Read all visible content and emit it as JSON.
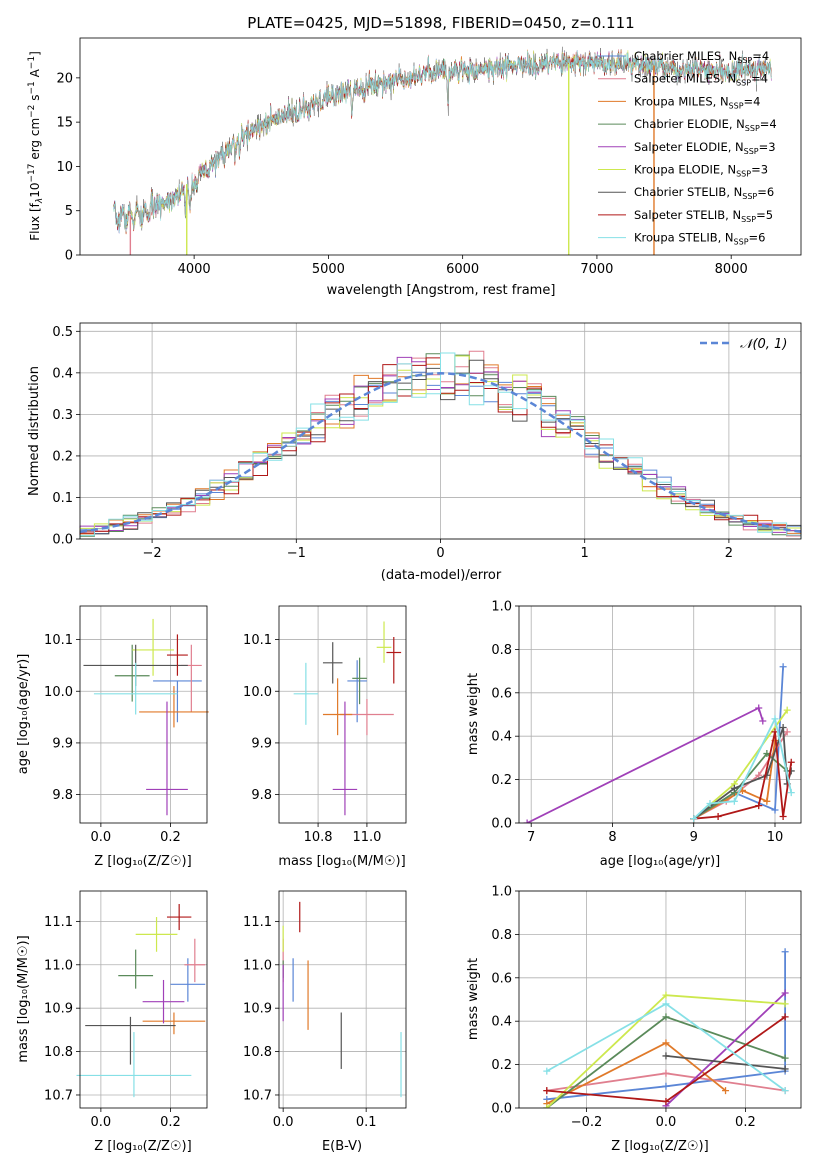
{
  "figure_title": "PLATE=0425, MJD=51898, FIBERID=0450, z=0.111",
  "models": [
    {
      "name": "Chabrier MILES",
      "nssp": "4",
      "color": "#5b86d6"
    },
    {
      "name": "Salpeter MILES",
      "nssp": "4",
      "color": "#e07f8f"
    },
    {
      "name": "Kroupa MILES",
      "nssp": "4",
      "color": "#e07a2a"
    },
    {
      "name": "Chabrier ELODIE",
      "nssp": "4",
      "color": "#5a8a5a"
    },
    {
      "name": "Salpeter ELODIE",
      "nssp": "3",
      "color": "#a040b8"
    },
    {
      "name": "Kroupa ELODIE",
      "nssp": "3",
      "color": "#cde84e"
    },
    {
      "name": "Chabrier STELIB",
      "nssp": "6",
      "color": "#555555"
    },
    {
      "name": "Salpeter STELIB",
      "nssp": "5",
      "color": "#b01818"
    },
    {
      "name": "Kroupa STELIB",
      "nssp": "6",
      "color": "#86e0e6"
    }
  ],
  "chart_data": [
    {
      "id": "spectrum",
      "type": "line",
      "xlabel": "wavelength [Angstrom, rest frame]",
      "ylabel_parts": {
        "a": "Flux [f",
        "b": "λ",
        "c": "10",
        "d": "−17",
        "e": " erg cm",
        "f": "−2",
        "g": " s",
        "h": "−1",
        "i": " A",
        "j": "−1",
        "k": "]"
      },
      "xlim": [
        3150,
        8520
      ],
      "ylim": [
        0,
        24.5
      ],
      "xticks": [
        4000,
        5000,
        6000,
        7000,
        8000
      ],
      "yticks": [
        0,
        5,
        10,
        15,
        20
      ],
      "continuum_knots": [
        [
          3400,
          4.2
        ],
        [
          3600,
          4.5
        ],
        [
          3800,
          6.2
        ],
        [
          3950,
          7.4
        ],
        [
          4100,
          9.8
        ],
        [
          4300,
          12.5
        ],
        [
          4500,
          14.8
        ],
        [
          4800,
          16.3
        ],
        [
          5000,
          17.8
        ],
        [
          5200,
          18.9
        ],
        [
          5500,
          19.8
        ],
        [
          5800,
          20.8
        ],
        [
          6100,
          20.9
        ],
        [
          6400,
          21.4
        ],
        [
          6700,
          21.6
        ],
        [
          7000,
          21.7
        ],
        [
          7300,
          21.5
        ],
        [
          7700,
          21.0
        ],
        [
          8000,
          20.8
        ],
        [
          8300,
          21.2
        ]
      ],
      "absorption_features": [
        [
          3934,
          2.5
        ],
        [
          3969,
          2.3
        ],
        [
          4102,
          1.2
        ],
        [
          4305,
          1.6
        ],
        [
          4340,
          1.0
        ],
        [
          4861,
          1.2
        ],
        [
          5175,
          2.6
        ],
        [
          5270,
          1.2
        ],
        [
          5890,
          3.5
        ],
        [
          6563,
          1.2
        ],
        [
          7600,
          0.8
        ]
      ],
      "glitches": [
        [
          3525,
          4.5
        ],
        [
          3945,
          8.0
        ],
        [
          6790,
          21.6
        ],
        [
          7425,
          21.4
        ]
      ],
      "legend_loc": "upper right"
    },
    {
      "id": "residuals",
      "type": "step-histogram",
      "xlabel": "(data-model)/error",
      "ylabel": "Normed distribution",
      "xlim": [
        -2.5,
        2.5
      ],
      "ylim": [
        0,
        0.52
      ],
      "xticks": [
        -2,
        -1,
        0,
        1,
        2
      ],
      "xticklabels": [
        "−2",
        "−1",
        "0",
        "1",
        "2"
      ],
      "yticks": [
        0.0,
        0.1,
        0.2,
        0.3,
        0.4,
        0.5
      ],
      "yticklabels": [
        "0.0",
        "0.1",
        "0.2",
        "0.3",
        "0.4",
        "0.5"
      ],
      "bin_width": 0.1,
      "normal_curve_label": "𝒩(0, 1)",
      "normal_curve_color": "#5b86d6",
      "legend_loc": "upper right",
      "grid": true
    },
    {
      "id": "age_vs_Z",
      "type": "errorbar",
      "xlabel": "Z [log₁₀(Z/Z☉)]",
      "ylabel": "age  [log₁₀(age/yr)]",
      "xlim": [
        -0.06,
        0.305
      ],
      "ylim": [
        9.745,
        10.165
      ],
      "xticks": [
        0.0,
        0.2
      ],
      "xticklabels": [
        "0.0",
        "0.2"
      ],
      "yticks": [
        9.8,
        9.9,
        10.0,
        10.1
      ],
      "yticklabels": [
        "9.8",
        "9.9",
        "10.0",
        "10.1"
      ],
      "points": [
        {
          "x": 0.22,
          "xerr": 0.07,
          "y": 10.02,
          "yerr": [
            0.08,
            0.0
          ]
        },
        {
          "x": 0.26,
          "xerr": 0.03,
          "y": 10.05,
          "yerr": [
            0.09,
            0.04
          ]
        },
        {
          "x": 0.21,
          "xerr": 0.1,
          "y": 9.96,
          "yerr": [
            0.03,
            0.05
          ]
        },
        {
          "x": 0.09,
          "xerr": 0.05,
          "y": 10.03,
          "yerr": [
            0.05,
            0.06
          ]
        },
        {
          "x": 0.19,
          "xerr": 0.06,
          "y": 9.81,
          "yerr": [
            0.05,
            0.17
          ]
        },
        {
          "x": 0.15,
          "xerr": 0.06,
          "y": 10.08,
          "yerr": [
            0.05,
            0.06
          ]
        },
        {
          "x": 0.1,
          "xerr": 0.15,
          "y": 10.05,
          "yerr": [
            0.04,
            0.04
          ]
        },
        {
          "x": 0.22,
          "xerr": 0.03,
          "y": 10.07,
          "yerr": [
            0.04,
            0.04
          ]
        },
        {
          "x": 0.1,
          "xerr": 0.12,
          "y": 9.995,
          "yerr": [
            0.04,
            0.06
          ]
        }
      ]
    },
    {
      "id": "age_vs_mass",
      "type": "errorbar",
      "xlabel": "mass [log₁₀(M/M☉)]",
      "xlim": [
        10.64,
        11.16
      ],
      "ylim": [
        9.745,
        10.165
      ],
      "xticks": [
        10.8,
        11.0
      ],
      "xticklabels": [
        "10.8",
        "11.0"
      ],
      "yticks": [
        9.8,
        9.9,
        10.0,
        10.1
      ],
      "yticklabels": [
        "9.8",
        "9.9",
        "10.0",
        "10.1"
      ],
      "points": [
        {
          "x": 10.96,
          "xerr": 0.04,
          "y": 10.02,
          "yerr": [
            0.08,
            0.04
          ]
        },
        {
          "x": 11.0,
          "xerr": 0.11,
          "y": 9.955,
          "yerr": [
            0.04,
            0.03
          ]
        },
        {
          "x": 10.88,
          "xerr": 0.06,
          "y": 9.955,
          "yerr": [
            0.04,
            0.07
          ]
        },
        {
          "x": 10.97,
          "xerr": 0.03,
          "y": 10.025,
          "yerr": [
            0.05,
            0.04
          ]
        },
        {
          "x": 10.91,
          "xerr": 0.05,
          "y": 9.81,
          "yerr": [
            0.05,
            0.17
          ]
        },
        {
          "x": 11.07,
          "xerr": 0.03,
          "y": 10.085,
          "yerr": [
            0.03,
            0.05
          ]
        },
        {
          "x": 10.86,
          "xerr": 0.04,
          "y": 10.055,
          "yerr": [
            0.04,
            0.04
          ]
        },
        {
          "x": 11.11,
          "xerr": 0.03,
          "y": 10.075,
          "yerr": [
            0.06,
            0.03
          ]
        },
        {
          "x": 10.75,
          "xerr": 0.05,
          "y": 9.995,
          "yerr": [
            0.06,
            0.06
          ]
        }
      ]
    },
    {
      "id": "massweight_vs_age",
      "type": "line",
      "xlabel": "age  [log₁₀(age/yr)]",
      "ylabel": "mass weight",
      "xlim": [
        6.85,
        10.32
      ],
      "ylim": [
        0,
        1
      ],
      "xticks": [
        7,
        8,
        9,
        10
      ],
      "yticks": [
        0.0,
        0.2,
        0.4,
        0.6,
        0.8,
        1.0
      ],
      "yticklabels": [
        "0.0",
        "0.2",
        "0.4",
        "0.6",
        "0.8",
        "1.0"
      ],
      "series": [
        {
          "x": [
            9.0,
            9.5,
            10.0,
            10.1
          ],
          "y": [
            0.02,
            0.14,
            0.06,
            0.72
          ]
        },
        {
          "x": [
            9.0,
            9.4,
            9.8,
            10.15
          ],
          "y": [
            0.02,
            0.1,
            0.22,
            0.42
          ]
        },
        {
          "x": [
            9.0,
            9.6,
            9.9,
            10.0
          ],
          "y": [
            0.02,
            0.15,
            0.1,
            0.38
          ]
        },
        {
          "x": [
            9.0,
            9.5,
            9.9,
            10.15
          ],
          "y": [
            0.02,
            0.14,
            0.32,
            0.24
          ]
        },
        {
          "x": [
            6.95,
            9.8,
            9.85
          ],
          "y": [
            0.0,
            0.53,
            0.47
          ]
        },
        {
          "x": [
            9.0,
            9.5,
            10.15
          ],
          "y": [
            0.02,
            0.18,
            0.52
          ]
        },
        {
          "x": [
            9.0,
            9.5,
            9.9,
            10.1,
            10.15,
            10.2
          ],
          "y": [
            0.02,
            0.16,
            0.22,
            0.44,
            0.18,
            0.24
          ]
        },
        {
          "x": [
            9.0,
            9.3,
            9.8,
            10.0,
            10.1,
            10.2
          ],
          "y": [
            0.02,
            0.03,
            0.08,
            0.42,
            0.03,
            0.28
          ]
        },
        {
          "x": [
            9.0,
            9.2,
            9.5,
            10.0,
            10.2
          ],
          "y": [
            0.02,
            0.09,
            0.1,
            0.48,
            0.14
          ]
        }
      ]
    },
    {
      "id": "mass_vs_Z",
      "type": "errorbar",
      "xlabel": "Z [log₁₀(Z/Z☉)]",
      "ylabel": "mass [log₁₀(M/M☉)]",
      "xlim": [
        -0.06,
        0.305
      ],
      "ylim": [
        10.67,
        11.17
      ],
      "xticks": [
        0.0,
        0.2
      ],
      "xticklabels": [
        "0.0",
        "0.2"
      ],
      "yticks": [
        10.7,
        10.8,
        10.9,
        11.0,
        11.1
      ],
      "yticklabels": [
        "10.7",
        "10.8",
        "10.9",
        "11.0",
        "11.1"
      ],
      "points": [
        {
          "x": 0.25,
          "xerr": 0.05,
          "y": 10.955,
          "yerr": [
            0.04,
            0.06
          ]
        },
        {
          "x": 0.27,
          "xerr": 0.03,
          "y": 11.0,
          "yerr": [
            0.04,
            0.06
          ]
        },
        {
          "x": 0.21,
          "xerr": 0.09,
          "y": 10.87,
          "yerr": [
            0.03,
            0.02
          ]
        },
        {
          "x": 0.1,
          "xerr": 0.05,
          "y": 10.975,
          "yerr": [
            0.03,
            0.06
          ]
        },
        {
          "x": 0.18,
          "xerr": 0.06,
          "y": 10.915,
          "yerr": [
            0.05,
            0.05
          ]
        },
        {
          "x": 0.16,
          "xerr": 0.06,
          "y": 11.07,
          "yerr": [
            0.04,
            0.04
          ]
        },
        {
          "x": 0.085,
          "xerr": 0.13,
          "y": 10.86,
          "yerr": [
            0.09,
            0.02
          ]
        },
        {
          "x": 0.225,
          "xerr": 0.035,
          "y": 11.11,
          "yerr": [
            0.03,
            0.03
          ]
        },
        {
          "x": 0.095,
          "xerr": 0.165,
          "y": 10.745,
          "yerr": [
            0.05,
            0.1
          ]
        }
      ]
    },
    {
      "id": "mass_vs_EBV",
      "type": "errorbar",
      "xlabel": "E(B-V)",
      "xlim": [
        -0.005,
        0.148
      ],
      "ylim": [
        10.67,
        11.17
      ],
      "xticks": [
        0.0,
        0.1
      ],
      "xticklabels": [
        "0.0",
        "0.1"
      ],
      "yticks": [
        10.7,
        10.8,
        10.9,
        11.0,
        11.1
      ],
      "yticklabels": [
        "10.7",
        "10.8",
        "10.9",
        "11.0",
        "11.1"
      ],
      "points": [
        {
          "x": 0.012,
          "xerr": 0,
          "y": 10.955,
          "yerr": [
            0.04,
            0.06
          ]
        },
        {
          "x": 0.0,
          "xerr": 0,
          "y": 11.0,
          "yerr": [
            0.04,
            0.06
          ]
        },
        {
          "x": 0.03,
          "xerr": 0,
          "y": 10.93,
          "yerr": [
            0.08,
            0.08
          ]
        },
        {
          "x": 0.0,
          "xerr": 0,
          "y": 10.99,
          "yerr": [
            0.02,
            0.02
          ]
        },
        {
          "x": 0.0,
          "xerr": 0,
          "y": 10.935,
          "yerr": [
            0.065,
            0.065
          ]
        },
        {
          "x": 0.0,
          "xerr": 0,
          "y": 11.06,
          "yerr": [
            0.03,
            0.03
          ]
        },
        {
          "x": 0.07,
          "xerr": 0,
          "y": 10.825,
          "yerr": [
            0.065,
            0.065
          ]
        },
        {
          "x": 0.02,
          "xerr": 0,
          "y": 11.11,
          "yerr": [
            0.035,
            0.035
          ]
        },
        {
          "x": 0.142,
          "xerr": 0,
          "y": 10.77,
          "yerr": [
            0.075,
            0.075
          ]
        }
      ]
    },
    {
      "id": "massweight_vs_Z",
      "type": "line",
      "xlabel": "Z [log₁₀(Z/Z☉)]",
      "ylabel": "mass weight",
      "xlim": [
        -0.37,
        0.34
      ],
      "ylim": [
        0,
        1
      ],
      "xticks": [
        -0.2,
        0.0,
        0.2
      ],
      "xticklabels": [
        "−0.2",
        "0.0",
        "0.2"
      ],
      "yticks": [
        0.0,
        0.2,
        0.4,
        0.6,
        0.8,
        1.0
      ],
      "yticklabels": [
        "0.0",
        "0.2",
        "0.4",
        "0.6",
        "0.8",
        "1.0"
      ],
      "series": [
        {
          "x": [
            -0.3,
            0.0,
            0.3,
            0.3
          ],
          "y": [
            0.04,
            0.1,
            0.17,
            0.72
          ]
        },
        {
          "x": [
            -0.3,
            0.0,
            0.3
          ],
          "y": [
            0.08,
            0.16,
            0.08
          ]
        },
        {
          "x": [
            -0.3,
            0.0,
            0.15
          ],
          "y": [
            0.02,
            0.3,
            0.08
          ]
        },
        {
          "x": [
            -0.3,
            0.0,
            0.3
          ],
          "y": [
            0.0,
            0.42,
            0.23
          ]
        },
        {
          "x": [
            0.0,
            0.3
          ],
          "y": [
            0.01,
            0.53
          ]
        },
        {
          "x": [
            -0.3,
            0.0,
            0.3
          ],
          "y": [
            0.0,
            0.52,
            0.48
          ]
        },
        {
          "x": [
            0.0,
            0.3
          ],
          "y": [
            0.24,
            0.18
          ]
        },
        {
          "x": [
            -0.3,
            0.0,
            0.3
          ],
          "y": [
            0.08,
            0.03,
            0.42
          ]
        },
        {
          "x": [
            -0.3,
            0.0,
            0.3
          ],
          "y": [
            0.17,
            0.48,
            0.08
          ]
        }
      ]
    }
  ]
}
